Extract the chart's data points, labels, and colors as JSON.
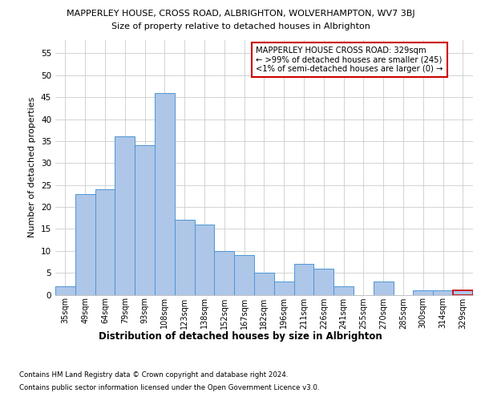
{
  "title_line1": "MAPPERLEY HOUSE, CROSS ROAD, ALBRIGHTON, WOLVERHAMPTON, WV7 3BJ",
  "title_line2": "Size of property relative to detached houses in Albrighton",
  "xlabel": "Distribution of detached houses by size in Albrighton",
  "ylabel": "Number of detached properties",
  "categories": [
    "35sqm",
    "49sqm",
    "64sqm",
    "79sqm",
    "93sqm",
    "108sqm",
    "123sqm",
    "138sqm",
    "152sqm",
    "167sqm",
    "182sqm",
    "196sqm",
    "211sqm",
    "226sqm",
    "241sqm",
    "255sqm",
    "270sqm",
    "285sqm",
    "300sqm",
    "314sqm",
    "329sqm"
  ],
  "values": [
    2,
    23,
    24,
    36,
    34,
    46,
    17,
    16,
    10,
    9,
    5,
    3,
    7,
    6,
    2,
    0,
    3,
    0,
    1,
    1,
    1
  ],
  "bar_color": "#aec6e8",
  "bar_edge_color": "#4d96d4",
  "highlight_bar_index": 20,
  "highlight_bar_edge_color": "#cc0000",
  "annotation_box_text": "MAPPERLEY HOUSE CROSS ROAD: 329sqm\n← >99% of detached houses are smaller (245)\n<1% of semi-detached houses are larger (0) →",
  "annotation_box_color": "#ffffff",
  "annotation_box_edge_color": "#cc0000",
  "ylim": [
    0,
    58
  ],
  "yticks": [
    0,
    5,
    10,
    15,
    20,
    25,
    30,
    35,
    40,
    45,
    50,
    55
  ],
  "footer_line1": "Contains HM Land Registry data © Crown copyright and database right 2024.",
  "footer_line2": "Contains public sector information licensed under the Open Government Licence v3.0.",
  "grid_color": "#cccccc",
  "background_color": "#ffffff"
}
